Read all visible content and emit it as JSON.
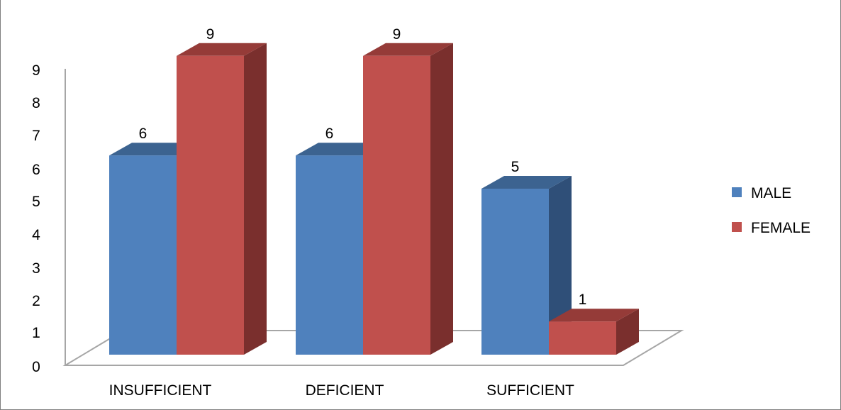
{
  "chart_data": {
    "type": "bar",
    "variant": "3d-clustered-column",
    "categories": [
      "INSUFFICIENT",
      "DEFICIENT",
      "SUFFICIENT"
    ],
    "series": [
      {
        "name": "MALE",
        "values": [
          6,
          6,
          5
        ],
        "color": "#4f81bd",
        "side_color": "#2f4f78",
        "top_color": "#3c6390"
      },
      {
        "name": "FEMALE",
        "values": [
          9,
          9,
          1
        ],
        "color": "#c0504d",
        "side_color": "#7a2f2d",
        "top_color": "#953b38"
      }
    ],
    "y_ticks": [
      "0",
      "1",
      "2",
      "3",
      "4",
      "5",
      "6",
      "7",
      "8",
      "9"
    ],
    "ylim": [
      0,
      9
    ],
    "grid": false,
    "legend_position": "right",
    "data_labels": true
  }
}
